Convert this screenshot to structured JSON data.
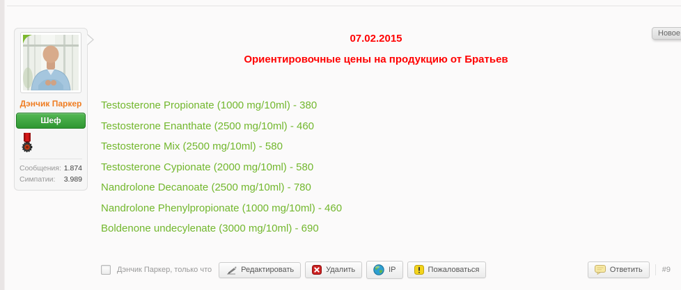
{
  "page": {
    "new_badge": "Новое"
  },
  "user": {
    "name": "Дэнчик Паркер",
    "role": "Шеф",
    "stats": [
      {
        "label": "Сообщения:",
        "value": "1.874"
      },
      {
        "label": "Симпатии:",
        "value": "3.989"
      }
    ]
  },
  "post": {
    "date": "07.02.2015",
    "title": "Ориентировочные цены на продукцию от Братьев",
    "items": [
      "Testosterone Propionate (1000 mg/10ml) - 380",
      "Testosterone Enanthate (2500 mg/10ml) - 460",
      "Testosterone Mix (2500 mg/10ml) - 580",
      "Testosterone Cypionate (2000 mg/10ml) - 580",
      "Nandrolone Decanoate (2500 mg/10ml) - 780",
      "Nandrolone Phenylpropionate (1000 mg/10ml) - 460",
      "Boldenone undecylenate (3000 mg/10ml) - 690"
    ],
    "number": "#9"
  },
  "footer": {
    "byline": "Дэнчик Паркер, только что",
    "edit_label": "Редактировать",
    "delete_label": "Удалить",
    "ip_label": "IP",
    "report_label": "Пожаловаться",
    "reply_label": "Ответить"
  },
  "icons": {
    "online": "green-leaf",
    "award": "red-ribbon-medal",
    "edit": "pencil",
    "delete": "red-x-box",
    "ip": "globe",
    "report": "yellow-exclamation-box",
    "reply": "speech-bubble"
  },
  "colors": {
    "heading_red": "#ff0000",
    "product_green": "#72b72d",
    "username_orange": "#ef7d22",
    "role_green": "#2f9732"
  }
}
